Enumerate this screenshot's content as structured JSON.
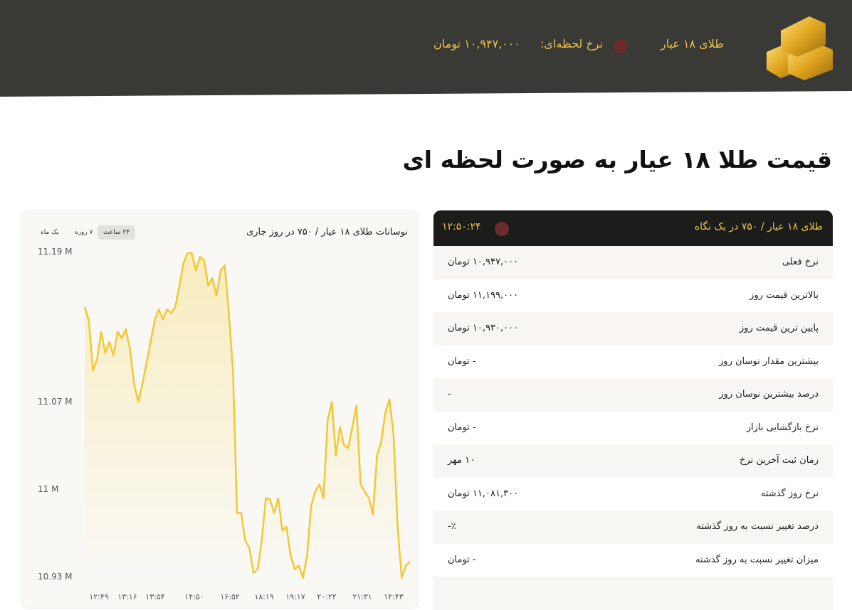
{
  "header": {
    "label": "طلای ۱۸ عیار",
    "rate_label": "نرخ لحظه‌ای:",
    "rate_value": "۱۰,۹۴۷,۰۰۰ تومان",
    "live_dot_color": "#6a2c2c",
    "icon": "gold-bars-icon"
  },
  "page_title": "قیمت طلا ۱۸ عیار به صورت لحظه ای",
  "chart": {
    "ranges": [
      "۲۴ ساعت",
      "۷ روزه",
      "یک ماه"
    ],
    "active_range": "۲۴ ساعت"
  },
  "chart_data": {
    "type": "area",
    "title": "نوسانات طلای ۱۸ عیار / ۷۵۰ در روز جاری",
    "y_ticks": [
      "11.19 M",
      "11.07 M",
      "11 M",
      "10.93 M"
    ],
    "y_tick_values": [
      11.19,
      11.07,
      11.0,
      10.93
    ],
    "ylim": [
      10.93,
      11.19
    ],
    "x_ticks": [
      "۱۲:۴۹",
      "۱۳:۱۶",
      "۱۳:۵۴",
      "۱۴:۵۰",
      "۱۶:۵۲",
      "۱۸:۱۹",
      "۱۹:۱۷",
      "۲۰:۲۲",
      "۲۱:۳۱",
      "۱۲:۴۳"
    ],
    "line_color": "#f2c832",
    "values": [
      11.147,
      11.136,
      11.096,
      11.105,
      11.127,
      11.11,
      11.119,
      11.108,
      11.127,
      11.122,
      11.129,
      11.113,
      11.085,
      11.071,
      11.085,
      11.102,
      11.119,
      11.136,
      11.145,
      11.137,
      11.145,
      11.142,
      11.147,
      11.164,
      11.182,
      11.19,
      11.19,
      11.176,
      11.187,
      11.184,
      11.164,
      11.17,
      11.156,
      11.176,
      11.18,
      11.142,
      11.096,
      10.982,
      10.982,
      10.96,
      10.954,
      10.934,
      10.937,
      10.96,
      10.994,
      10.993,
      10.982,
      10.994,
      10.968,
      10.971,
      10.948,
      10.937,
      10.94,
      10.93,
      10.948,
      10.988,
      10.999,
      11.005,
      10.994,
      11.056,
      11.071,
      11.028,
      11.051,
      11.036,
      11.034,
      11.051,
      11.068,
      11.005,
      10.999,
      10.994,
      10.981,
      11.028,
      11.039,
      11.062,
      11.073,
      11.045,
      10.971,
      10.93,
      10.94,
      10.943
    ]
  },
  "info": {
    "title": "طلای ۱۸ عیار / ۷۵۰ در یک نگاه",
    "time": "۱۲:۵۰:۲۴",
    "rows": [
      {
        "k": "نرخ فعلی",
        "v": "۱۰,۹۴۷,۰۰۰ تومان"
      },
      {
        "k": "بالاترین قیمت روز",
        "v": "۱۱,۱۹۹,۰۰۰ تومان"
      },
      {
        "k": "پایین ترین قیمت روز",
        "v": "۱۰,۹۳۰,۰۰۰ تومان"
      },
      {
        "k": "بیشترین مقدار نوسان روز",
        "v": "- تومان"
      },
      {
        "k": "درصد بیشترین نوسان روز",
        "v": "-"
      },
      {
        "k": "نرخ بازگشایی بازار",
        "v": "- تومان"
      },
      {
        "k": "زمان ثبت آخرین نرخ",
        "v": "۱۰ مهر"
      },
      {
        "k": "نرخ روز گذشته",
        "v": "۱۱,۰۸۱,۳۰۰ تومان"
      },
      {
        "k": "درصد تغییر نسبت به روز گذشته",
        "v": "٪-"
      },
      {
        "k": "میزان تغییر نسبت به روز گذشته",
        "v": "- تومان"
      },
      {
        "k": "",
        "v": ""
      }
    ]
  }
}
